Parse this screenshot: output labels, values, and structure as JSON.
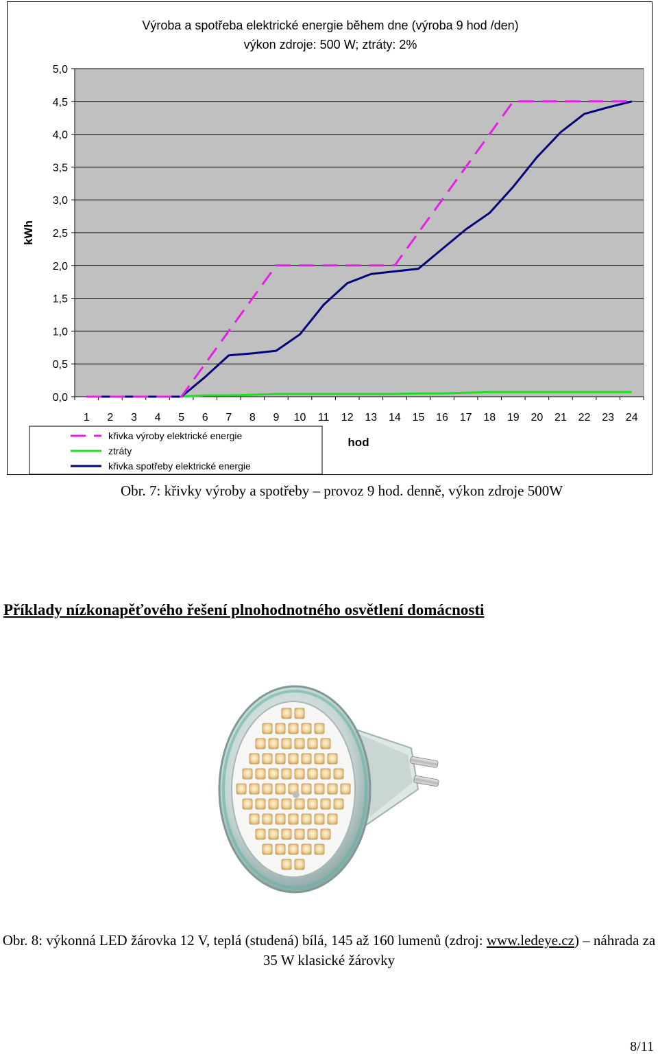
{
  "chart_data": {
    "type": "line",
    "title": "Výroba a spotřeba elektrické energie během dne (výroba 9 hod /den)",
    "subtitle": "výkon zdroje: 500 W; ztráty: 2%",
    "xlabel": "hod",
    "ylabel": "kWh",
    "categories": [
      "1",
      "2",
      "3",
      "4",
      "5",
      "6",
      "7",
      "8",
      "9",
      "10",
      "11",
      "12",
      "13",
      "14",
      "15",
      "16",
      "17",
      "18",
      "19",
      "20",
      "21",
      "22",
      "23",
      "24"
    ],
    "yticks": [
      "0,0",
      "0,5",
      "1,0",
      "1,5",
      "2,0",
      "2,5",
      "3,0",
      "3,5",
      "4,0",
      "4,5",
      "5,0"
    ],
    "ylim": [
      0,
      5
    ],
    "grid": true,
    "legend_position": "bottom-left",
    "series": [
      {
        "name": "křivka výroby elektrické energie",
        "style": "dashed",
        "color": "#e61ee6",
        "values": [
          0,
          0,
          0,
          0,
          0,
          0.5,
          1.0,
          1.5,
          2.0,
          2.0,
          2.0,
          2.0,
          2.0,
          2.0,
          2.5,
          3.0,
          3.5,
          4.0,
          4.5,
          4.5,
          4.5,
          4.5,
          4.5,
          4.5
        ]
      },
      {
        "name": "ztráty",
        "style": "solid",
        "color": "#22dd22",
        "values": [
          0,
          0,
          0,
          0,
          0,
          0.02,
          0.02,
          0.03,
          0.04,
          0.04,
          0.04,
          0.04,
          0.04,
          0.04,
          0.05,
          0.05,
          0.06,
          0.07,
          0.07,
          0.07,
          0.07,
          0.07,
          0.07,
          0.07
        ]
      },
      {
        "name": "křivka spotřeby elektrické energie",
        "style": "solid",
        "color": "#00007a",
        "values": [
          0,
          0,
          0,
          0,
          0,
          0.3,
          0.63,
          0.66,
          0.7,
          0.95,
          1.4,
          1.73,
          1.87,
          1.91,
          1.95,
          2.25,
          2.55,
          2.8,
          3.2,
          3.65,
          4.03,
          4.31,
          4.41,
          4.5
        ]
      }
    ],
    "background_color": "#c0c0c0"
  },
  "captions": {
    "fig7": "Obr. 7: křivky výroby a spotřeby – provoz 9 hod. denně, výkon zdroje 500W",
    "fig8_before": "Obr. 8: výkonná LED žárovka 12 V, teplá (studená) bílá, 145 až 160 lumenů (zdroj: ",
    "fig8_link": "www.ledeye.cz",
    "fig8_after": ") – náhrada za 35 W klasické žárovky"
  },
  "section_heading": "Příklady nízkonapěťového řešení plnohodnotného osvětlení domácnosti",
  "page_number": "8/11"
}
